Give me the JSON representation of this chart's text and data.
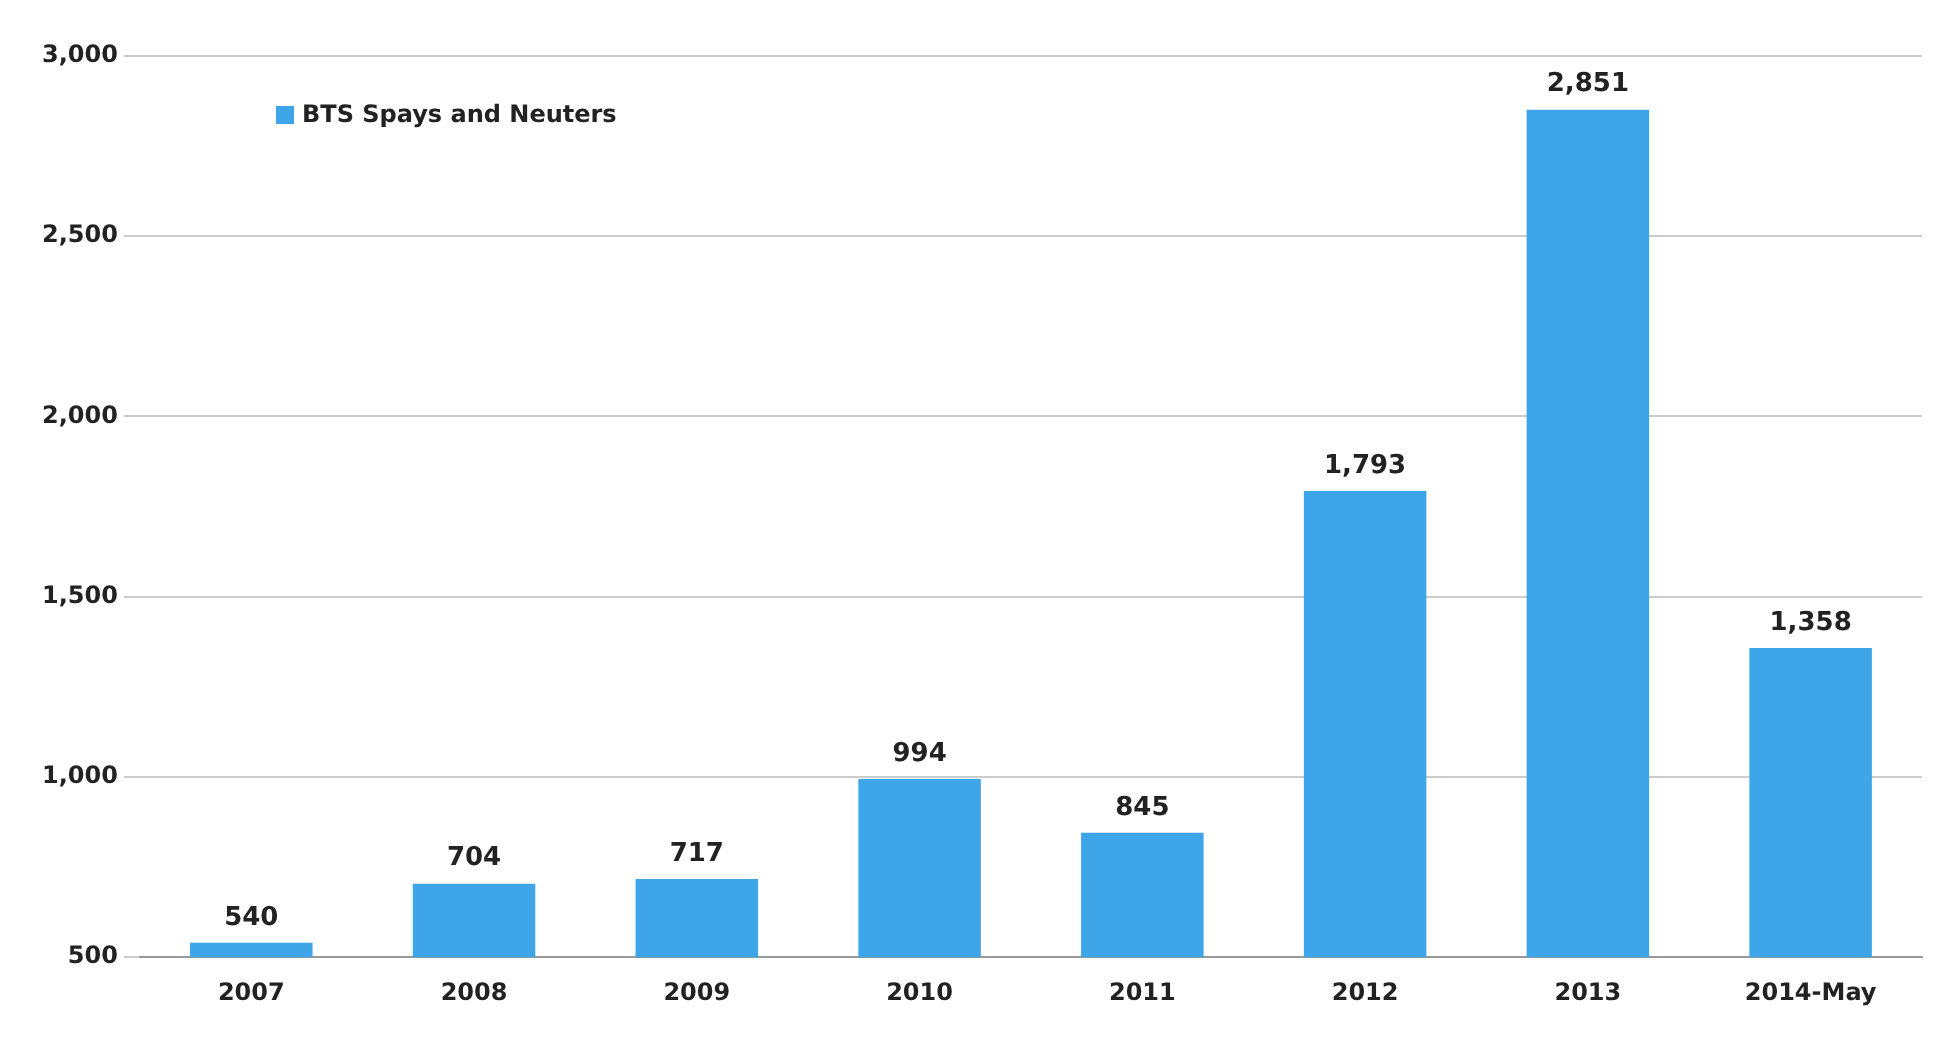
{
  "chart_data": {
    "type": "bar",
    "categories": [
      "2007",
      "2008",
      "2009",
      "2010",
      "2011",
      "2012",
      "2013",
      "2014-May"
    ],
    "series": [
      {
        "name": "BTS Spays and Neuters",
        "color": "#3ea6e8",
        "values": [
          540,
          704,
          717,
          994,
          845,
          1793,
          2851,
          1358
        ],
        "value_labels": [
          "540",
          "704",
          "717",
          "994",
          "845",
          "1,793",
          "2,851",
          "1,358"
        ]
      }
    ],
    "ylim": [
      500,
      3000
    ],
    "yticks": [
      {
        "value": 500,
        "label": "500"
      },
      {
        "value": 1000,
        "label": "1,000"
      },
      {
        "value": 1500,
        "label": "1,500"
      },
      {
        "value": 2000,
        "label": "2,000"
      },
      {
        "value": 2500,
        "label": "2,500"
      },
      {
        "value": 3000,
        "label": "3,000"
      }
    ],
    "grid": "y",
    "legend": "top left"
  }
}
